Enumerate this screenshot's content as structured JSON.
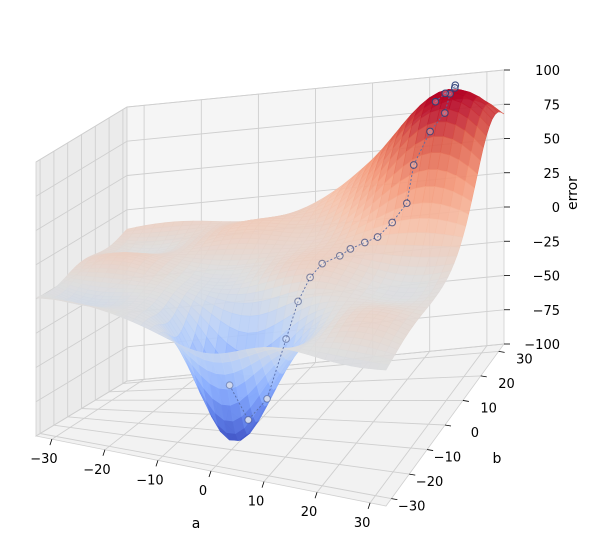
{
  "chart_data": {
    "type": "surface3d",
    "title": "",
    "axes": {
      "x": {
        "label": "a",
        "range": [
          -33,
          33
        ],
        "ticks": [
          -30,
          -20,
          -10,
          0,
          10,
          20,
          30
        ]
      },
      "y": {
        "label": "b",
        "range": [
          -33,
          33
        ],
        "ticks": [
          -30,
          -20,
          -10,
          0,
          10,
          20,
          30
        ]
      },
      "z": {
        "label": "error",
        "range": [
          -100,
          100
        ],
        "ticks": [
          -100,
          -75,
          -50,
          -25,
          0,
          25,
          50,
          75,
          100
        ]
      }
    },
    "grid": true,
    "colormap": "coolwarm",
    "surface": {
      "description_terms": [
        {
          "kind": "basin",
          "center": [
            0,
            -20
          ],
          "depth": -95
        },
        {
          "kind": "peak",
          "center": [
            25,
            28
          ],
          "height": 85
        },
        {
          "kind": "ripple",
          "amplitude": 8
        }
      ]
    },
    "path": {
      "name": "",
      "points": [
        [
          2,
          -28
        ],
        [
          4,
          -23
        ],
        [
          6,
          -18
        ],
        [
          8,
          -13
        ],
        [
          9,
          -9
        ],
        [
          10,
          -5
        ],
        [
          11,
          -1
        ],
        [
          13,
          3
        ],
        [
          14,
          6
        ],
        [
          16,
          8
        ],
        [
          18,
          9
        ],
        [
          20,
          11
        ],
        [
          22,
          13
        ],
        [
          22,
          17
        ],
        [
          24,
          20
        ],
        [
          26,
          22
        ],
        [
          26,
          25
        ],
        [
          26,
          28
        ],
        [
          25,
          31
        ],
        [
          23,
          32
        ],
        [
          21,
          33
        ]
      ]
    }
  }
}
